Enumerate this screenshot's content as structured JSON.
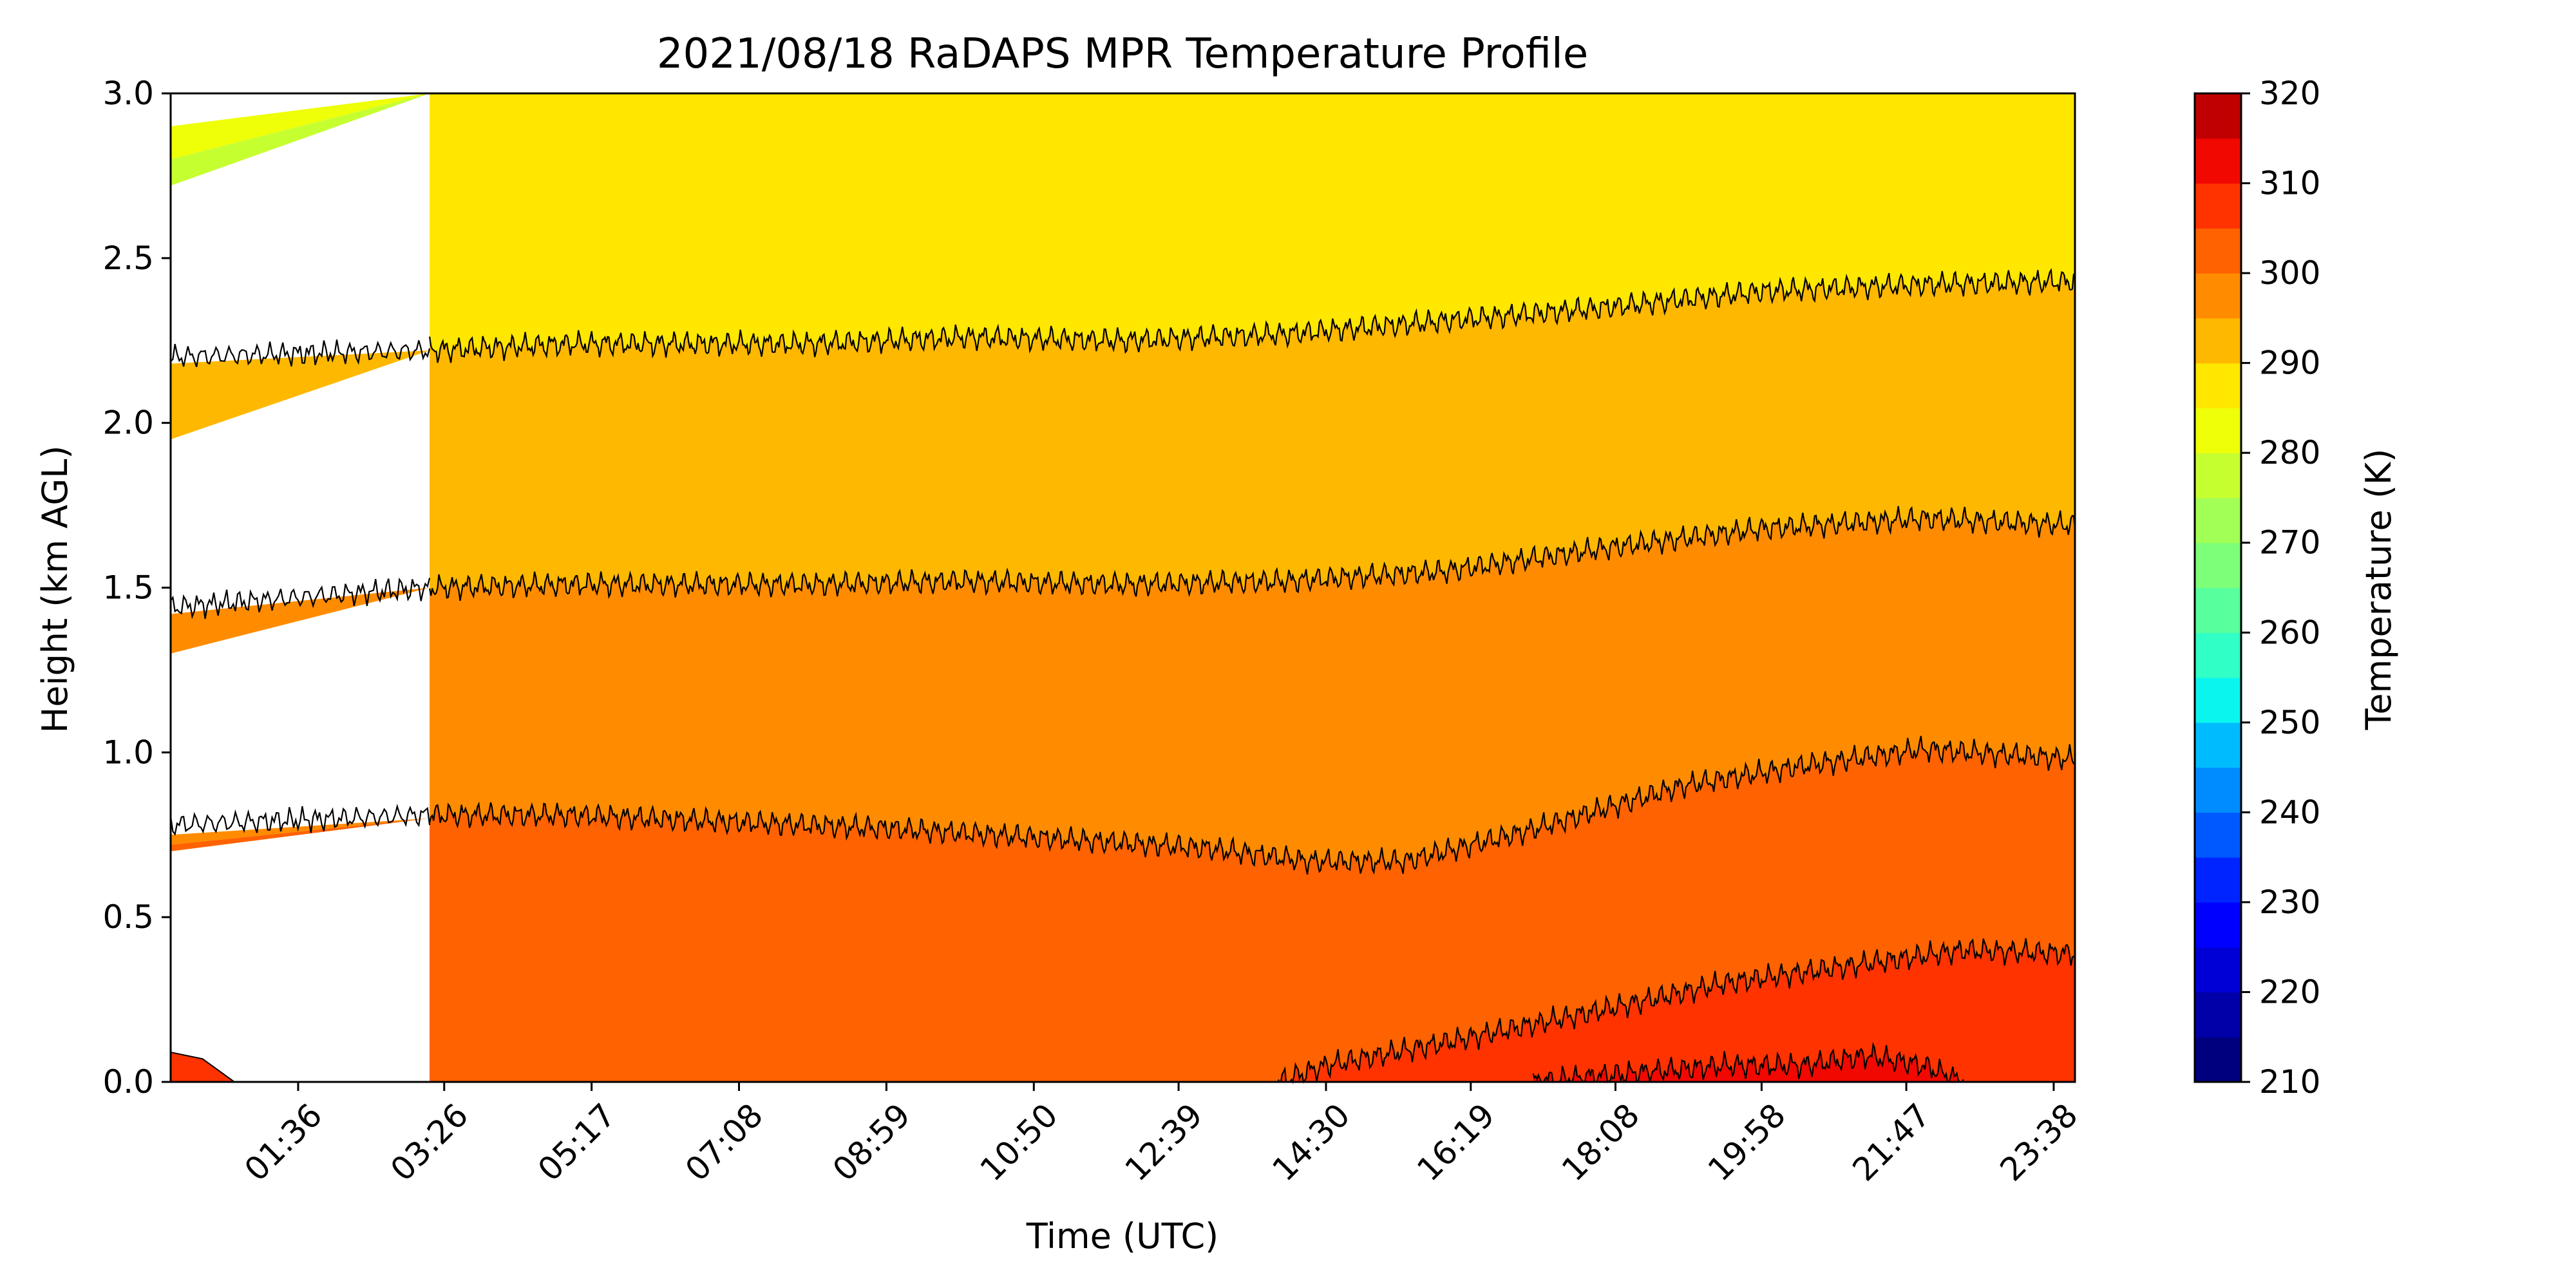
{
  "chart_data": {
    "type": "heatmap",
    "title": "2021/08/18 RaDAPS MPR Temperature Profile",
    "xlabel": "Time (UTC)",
    "ylabel": "Height (km AGL)",
    "colorbar_label": "Temperature (K)",
    "x_range_hours": [
      0.0,
      23.9
    ],
    "ylim": [
      0.0,
      3.0
    ],
    "data_gap_hours": [
      0.0,
      3.25
    ],
    "x_ticks": [
      {
        "label": "01:36",
        "hour": 1.6
      },
      {
        "label": "03:26",
        "hour": 3.433
      },
      {
        "label": "05:17",
        "hour": 5.283
      },
      {
        "label": "07:08",
        "hour": 7.133
      },
      {
        "label": "08:59",
        "hour": 8.983
      },
      {
        "label": "10:50",
        "hour": 10.833
      },
      {
        "label": "12:39",
        "hour": 12.65
      },
      {
        "label": "14:30",
        "hour": 14.5
      },
      {
        "label": "16:19",
        "hour": 16.317
      },
      {
        "label": "18:08",
        "hour": 18.133
      },
      {
        "label": "19:58",
        "hour": 19.967
      },
      {
        "label": "21:47",
        "hour": 21.783
      },
      {
        "label": "23:38",
        "hour": 23.633
      }
    ],
    "y_ticks": [
      {
        "label": "0.0",
        "value": 0.0
      },
      {
        "label": "0.5",
        "value": 0.5
      },
      {
        "label": "1.0",
        "value": 1.0
      },
      {
        "label": "1.5",
        "value": 1.5
      },
      {
        "label": "2.0",
        "value": 2.0
      },
      {
        "label": "2.5",
        "value": 2.5
      },
      {
        "label": "3.0",
        "value": 3.0
      }
    ],
    "colorbar": {
      "range": [
        210,
        320
      ],
      "step": 5,
      "ticks": [
        {
          "label": "210",
          "value": 210
        },
        {
          "label": "220",
          "value": 220
        },
        {
          "label": "230",
          "value": 230
        },
        {
          "label": "240",
          "value": 240
        },
        {
          "label": "250",
          "value": 250
        },
        {
          "label": "260",
          "value": 260
        },
        {
          "label": "270",
          "value": 270
        },
        {
          "label": "280",
          "value": 280
        },
        {
          "label": "290",
          "value": 290
        },
        {
          "label": "300",
          "value": 300
        },
        {
          "label": "310",
          "value": 310
        },
        {
          "label": "320",
          "value": 320
        }
      ],
      "colors": [
        "#00007f",
        "#0000a8",
        "#0000d6",
        "#0000ff",
        "#0024ff",
        "#0058ff",
        "#008cff",
        "#00bcff",
        "#0af5ee",
        "#30ffc6",
        "#58ff9d",
        "#7dff79",
        "#a1ff55",
        "#c6ff30",
        "#eeff08",
        "#ffe700",
        "#ffb800",
        "#ff8c00",
        "#ff6200",
        "#ff3300",
        "#f10800",
        "#c00000"
      ]
    },
    "temperature_bands": [
      {
        "range_K": [
          305,
          310
        ],
        "color": "#f10800"
      },
      {
        "range_K": [
          300,
          305
        ],
        "color": "#ff3300"
      },
      {
        "range_K": [
          295,
          300
        ],
        "color": "#ff6200"
      },
      {
        "range_K": [
          290,
          295
        ],
        "color": "#ff8c00"
      },
      {
        "range_K": [
          285,
          290
        ],
        "color": "#ffb800"
      },
      {
        "range_K": [
          280,
          285
        ],
        "color": "#ffe700"
      }
    ],
    "isotherm_heights_km": [
      {
        "range_K_above": "280-285",
        "boundary": "285K",
        "points": [
          [
            3.25,
            2.22
          ],
          [
            5,
            2.24
          ],
          [
            8,
            2.24
          ],
          [
            10,
            2.26
          ],
          [
            12,
            2.25
          ],
          [
            14,
            2.27
          ],
          [
            16,
            2.31
          ],
          [
            18,
            2.35
          ],
          [
            20,
            2.4
          ],
          [
            22,
            2.42
          ],
          [
            23.9,
            2.43
          ]
        ]
      },
      {
        "range_K_above": "285-290",
        "boundary": "290K",
        "points": [
          [
            3.25,
            1.5
          ],
          [
            5,
            1.51
          ],
          [
            8,
            1.51
          ],
          [
            10,
            1.52
          ],
          [
            12,
            1.51
          ],
          [
            14,
            1.52
          ],
          [
            16,
            1.55
          ],
          [
            18,
            1.62
          ],
          [
            20,
            1.68
          ],
          [
            22,
            1.71
          ],
          [
            23.9,
            1.69
          ]
        ]
      },
      {
        "range_K_above": "290-295",
        "boundary": "295K",
        "points": [
          [
            3.25,
            0.81
          ],
          [
            5,
            0.81
          ],
          [
            7,
            0.79
          ],
          [
            9,
            0.77
          ],
          [
            11,
            0.74
          ],
          [
            13,
            0.71
          ],
          [
            14.3,
            0.67
          ],
          [
            15.5,
            0.67
          ],
          [
            17,
            0.76
          ],
          [
            19,
            0.9
          ],
          [
            20.5,
            0.96
          ],
          [
            22,
            1.01
          ],
          [
            23.9,
            0.98
          ]
        ]
      },
      {
        "range_K_above": "295-300",
        "boundary": "300K",
        "points": [
          [
            13.9,
            0.0
          ],
          [
            14.5,
            0.05
          ],
          [
            16,
            0.12
          ],
          [
            18,
            0.22
          ],
          [
            19.5,
            0.3
          ],
          [
            21,
            0.35
          ],
          [
            22.5,
            0.4
          ],
          [
            23.9,
            0.39
          ]
        ]
      },
      {
        "range_K_above": "300-305",
        "boundary": "305K",
        "points": [
          [
            17.1,
            0.0
          ],
          [
            18,
            0.02
          ],
          [
            19.5,
            0.05
          ],
          [
            20.5,
            0.05
          ],
          [
            21.3,
            0.08
          ],
          [
            22,
            0.05
          ],
          [
            22.5,
            0.0
          ]
        ]
      }
    ],
    "gap_interpolation": {
      "pre_gap_segment_hours": [
        0.0,
        0.8
      ],
      "pre_gap_heights_km": {
        "285K": 2.2,
        "290K": 1.44,
        "295K": 0.78
      },
      "wedges": [
        {
          "color": "#eeff08",
          "left_km": [
            2.8,
            2.9
          ],
          "right_km": [
            3.0,
            3.0
          ]
        },
        {
          "color": "#c6ff30",
          "left_km": [
            2.72,
            2.8
          ],
          "right_km": [
            3.0,
            3.0
          ]
        },
        {
          "color": "#ffb800",
          "left_km": [
            1.95,
            2.18
          ],
          "right_km": [
            2.22,
            2.22
          ]
        },
        {
          "color": "#ff8c00",
          "left_km": [
            1.3,
            1.42
          ],
          "right_km": [
            1.5,
            1.5
          ]
        },
        {
          "color": "#ff8c00",
          "left_km": [
            0.72,
            0.75
          ],
          "right_km": [
            0.8,
            0.8
          ]
        },
        {
          "color": "#ff6200",
          "left_km": [
            0.7,
            0.72
          ],
          "right_km": [
            0.8,
            0.8
          ]
        }
      ],
      "surface_red_patch_km": 0.09
    }
  }
}
